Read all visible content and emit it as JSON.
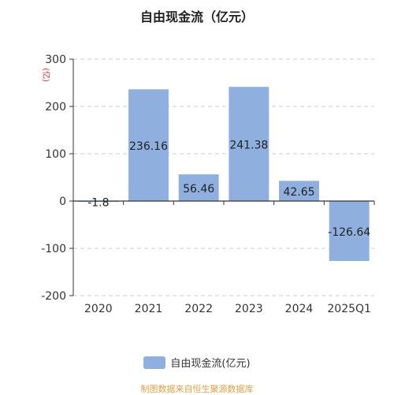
{
  "title": "自由现金流（亿元）",
  "colors": {
    "bar": "#8fb0df",
    "axis": "#333333",
    "grid": "#cccccc",
    "unit": "#e02020",
    "footer": "#d8a24a"
  },
  "chart_data": {
    "type": "bar",
    "title": "自由现金流（亿元）",
    "categories": [
      "2020",
      "2021",
      "2022",
      "2023",
      "2024",
      "2025Q1"
    ],
    "series": [
      {
        "name": "自由现金流(亿元)",
        "values": [
          -1.8,
          236.16,
          56.46,
          241.38,
          42.65,
          -126.64
        ]
      }
    ],
    "data_labels": [
      "-1.8",
      "236.16",
      "56.46",
      "241.38",
      "42.65",
      "-126.64"
    ],
    "yticks": [
      300,
      200,
      100,
      0,
      -100,
      -200
    ],
    "ylim": [
      -200,
      300
    ],
    "unit_label": "(亿)",
    "grid": true,
    "legend_position": "bottom"
  },
  "legend": {
    "label": "自由现金流(亿元)"
  },
  "footer": "制图数据来自恒生聚源数据库"
}
